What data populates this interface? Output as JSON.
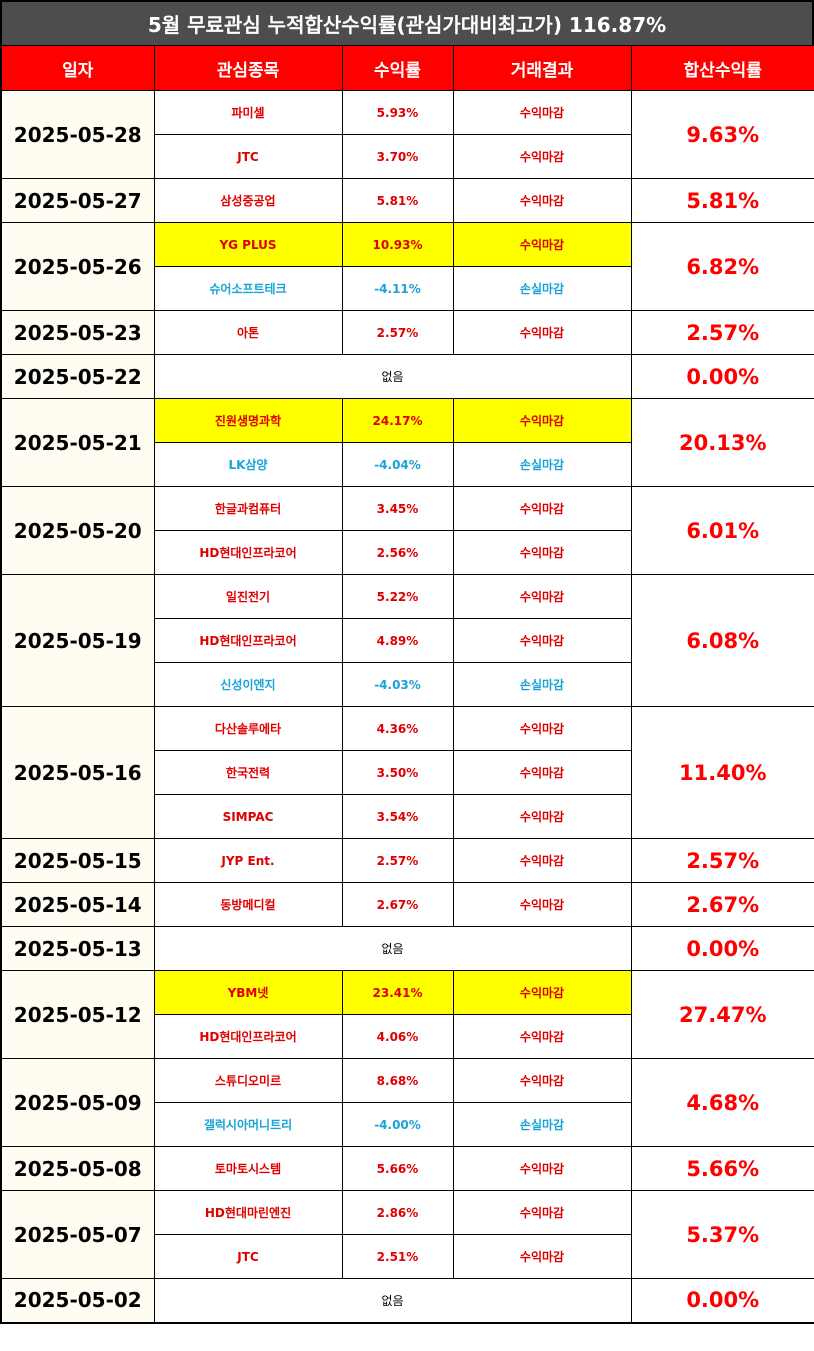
{
  "title": "5월 무료관심 누적합산수익률(관심가대비최고가) 116.87%",
  "headers": [
    "일자",
    "관심종목",
    "수익률",
    "거래결과",
    "합산수익률"
  ],
  "colors": {
    "header_bg": "#fe0000",
    "title_bg": "#4d4d4d",
    "profit": "#e00000",
    "loss": "#1aa3d9",
    "highlight": "#ffff00"
  },
  "rows": [
    {
      "date": "2025-05-28",
      "total": "9.63%",
      "items": [
        {
          "stock": "파미셀",
          "return": "5.93%",
          "result": "수익마감",
          "type": "profit",
          "highlight": false
        },
        {
          "stock": "JTC",
          "return": "3.70%",
          "result": "수익마감",
          "type": "profit",
          "highlight": false
        }
      ]
    },
    {
      "date": "2025-05-27",
      "total": "5.81%",
      "items": [
        {
          "stock": "삼성중공업",
          "return": "5.81%",
          "result": "수익마감",
          "type": "profit",
          "highlight": false
        }
      ]
    },
    {
      "date": "2025-05-26",
      "total": "6.82%",
      "items": [
        {
          "stock": "YG PLUS",
          "return": "10.93%",
          "result": "수익마감",
          "type": "profit",
          "highlight": true
        },
        {
          "stock": "슈어소프트테크",
          "return": "-4.11%",
          "result": "손실마감",
          "type": "loss",
          "highlight": false
        }
      ]
    },
    {
      "date": "2025-05-23",
      "total": "2.57%",
      "items": [
        {
          "stock": "아톤",
          "return": "2.57%",
          "result": "수익마감",
          "type": "profit",
          "highlight": false
        }
      ]
    },
    {
      "date": "2025-05-22",
      "total": "0.00%",
      "none": "없음",
      "items": []
    },
    {
      "date": "2025-05-21",
      "total": "20.13%",
      "items": [
        {
          "stock": "진원생명과학",
          "return": "24.17%",
          "result": "수익마감",
          "type": "profit",
          "highlight": true
        },
        {
          "stock": "LK삼양",
          "return": "-4.04%",
          "result": "손실마감",
          "type": "loss",
          "highlight": false
        }
      ]
    },
    {
      "date": "2025-05-20",
      "total": "6.01%",
      "items": [
        {
          "stock": "한글과컴퓨터",
          "return": "3.45%",
          "result": "수익마감",
          "type": "profit",
          "highlight": false
        },
        {
          "stock": "HD현대인프라코어",
          "return": "2.56%",
          "result": "수익마감",
          "type": "profit",
          "highlight": false
        }
      ]
    },
    {
      "date": "2025-05-19",
      "total": "6.08%",
      "items": [
        {
          "stock": "일진전기",
          "return": "5.22%",
          "result": "수익마감",
          "type": "profit",
          "highlight": false
        },
        {
          "stock": "HD현대인프라코어",
          "return": "4.89%",
          "result": "수익마감",
          "type": "profit",
          "highlight": false
        },
        {
          "stock": "신성이엔지",
          "return": "-4.03%",
          "result": "손실마감",
          "type": "loss",
          "highlight": false
        }
      ]
    },
    {
      "date": "2025-05-16",
      "total": "11.40%",
      "items": [
        {
          "stock": "다산솔루에타",
          "return": "4.36%",
          "result": "수익마감",
          "type": "profit",
          "highlight": false
        },
        {
          "stock": "한국전력",
          "return": "3.50%",
          "result": "수익마감",
          "type": "profit",
          "highlight": false
        },
        {
          "stock": "SIMPAC",
          "return": "3.54%",
          "result": "수익마감",
          "type": "profit",
          "highlight": false
        }
      ]
    },
    {
      "date": "2025-05-15",
      "total": "2.57%",
      "items": [
        {
          "stock": "JYP Ent.",
          "return": "2.57%",
          "result": "수익마감",
          "type": "profit",
          "highlight": false
        }
      ]
    },
    {
      "date": "2025-05-14",
      "total": "2.67%",
      "items": [
        {
          "stock": "동방메디컬",
          "return": "2.67%",
          "result": "수익마감",
          "type": "profit",
          "highlight": false
        }
      ]
    },
    {
      "date": "2025-05-13",
      "total": "0.00%",
      "none": "없음",
      "items": []
    },
    {
      "date": "2025-05-12",
      "total": "27.47%",
      "items": [
        {
          "stock": "YBM넷",
          "return": "23.41%",
          "result": "수익마감",
          "type": "profit",
          "highlight": true
        },
        {
          "stock": "HD현대인프라코어",
          "return": "4.06%",
          "result": "수익마감",
          "type": "profit",
          "highlight": false
        }
      ]
    },
    {
      "date": "2025-05-09",
      "total": "4.68%",
      "items": [
        {
          "stock": "스튜디오미르",
          "return": "8.68%",
          "result": "수익마감",
          "type": "profit",
          "highlight": false
        },
        {
          "stock": "갤럭시아머니트리",
          "return": "-4.00%",
          "result": "손실마감",
          "type": "loss",
          "highlight": false
        }
      ]
    },
    {
      "date": "2025-05-08",
      "total": "5.66%",
      "items": [
        {
          "stock": "토마토시스템",
          "return": "5.66%",
          "result": "수익마감",
          "type": "profit",
          "highlight": false
        }
      ]
    },
    {
      "date": "2025-05-07",
      "total": "5.37%",
      "items": [
        {
          "stock": "HD현대마린엔진",
          "return": "2.86%",
          "result": "수익마감",
          "type": "profit",
          "highlight": false
        },
        {
          "stock": "JTC",
          "return": "2.51%",
          "result": "수익마감",
          "type": "profit",
          "highlight": false
        }
      ]
    },
    {
      "date": "2025-05-02",
      "total": "0.00%",
      "none": "없음",
      "items": []
    }
  ]
}
